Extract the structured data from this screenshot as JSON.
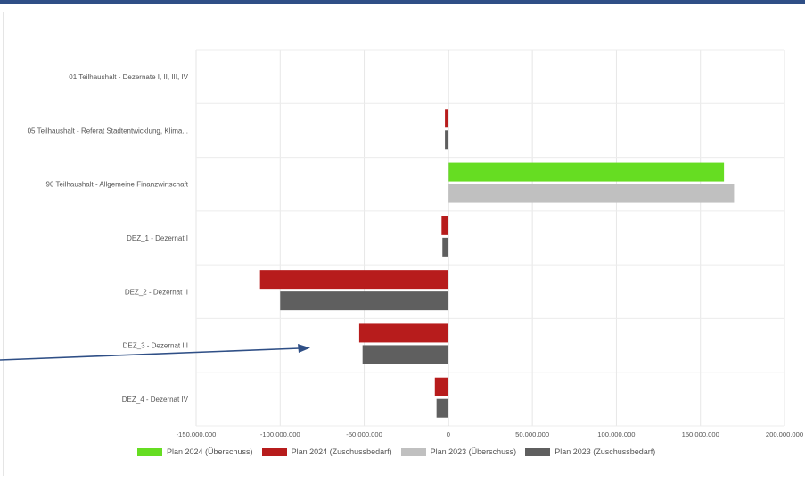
{
  "chart_data": {
    "type": "bar",
    "orientation": "horizontal",
    "title": "",
    "xlabel": "",
    "ylabel": "",
    "categories": [
      "01 Teilhaushalt - Dezernate I, II, III, IV",
      "05 Teilhaushalt - Referat Stadtentwicklung, Klima...",
      "90 Teilhaushalt - Allgemeine Finanzwirtschaft",
      "DEZ_1 - Dezernat I",
      "DEZ_2 - Dezernat II",
      "DEZ_3 - Dezernat III",
      "DEZ_4 - Dezernat IV"
    ],
    "xlim": [
      -150000000,
      200000000
    ],
    "xticks": [
      -150000000,
      -100000000,
      -50000000,
      0,
      50000000,
      100000000,
      150000000,
      200000000
    ],
    "xtick_labels": [
      "-150.000.000",
      "-100.000.000",
      "-50.000.000",
      "0",
      "50.000.000",
      "100.000.000",
      "150.000.000",
      "200.000.000"
    ],
    "grid": true,
    "legend_position": "bottom",
    "series": [
      {
        "name": "Plan 2024 (Überschuss)",
        "color": "#66dd22",
        "values": [
          0,
          0,
          164000000,
          0,
          0,
          0,
          0
        ]
      },
      {
        "name": "Plan 2024 (Zuschussbedarf)",
        "color": "#b71c1c",
        "values": [
          0,
          -2000000,
          0,
          -4000000,
          -112000000,
          -53000000,
          -8000000
        ]
      },
      {
        "name": "Plan 2023 (Überschuss)",
        "color": "#c0c0c0",
        "values": [
          0,
          0,
          170000000,
          0,
          0,
          0,
          0
        ]
      },
      {
        "name": "Plan 2023 (Zuschussbedarf)",
        "color": "#5f5f5f",
        "values": [
          0,
          -2000000,
          0,
          -3500000,
          -100000000,
          -51000000,
          -7000000
        ]
      }
    ]
  }
}
